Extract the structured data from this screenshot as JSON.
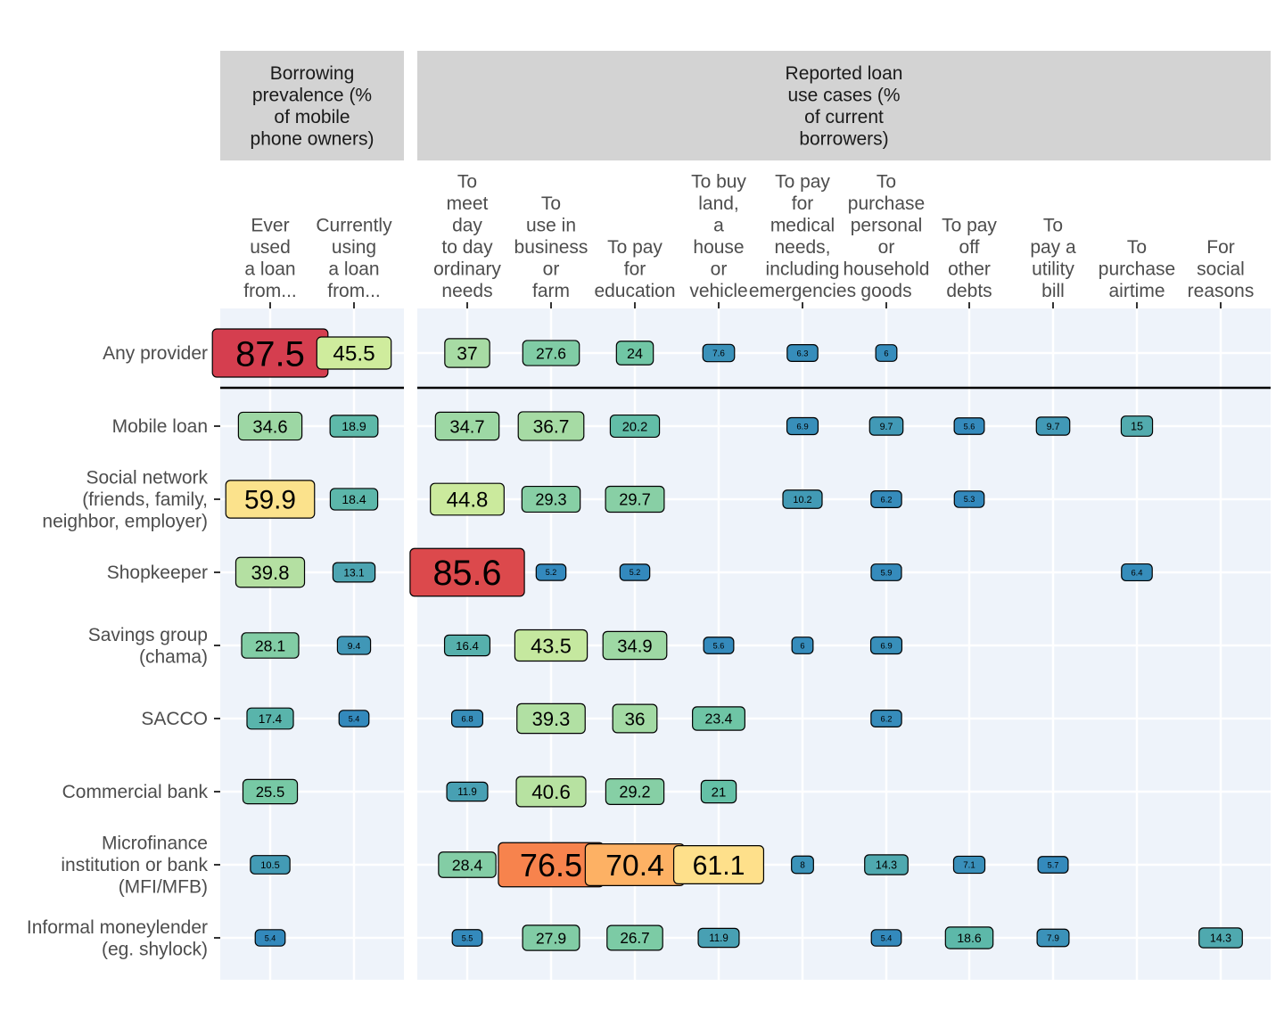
{
  "chart_data": {
    "type": "table",
    "facets": [
      {
        "title": "Borrowing\nprevalence (%\nof mobile\nphone owners)",
        "columns": [
          "Ever\nused\na loan\nfrom...",
          "Currently\nusing\na loan\nfrom..."
        ]
      },
      {
        "title": "Reported loan\nuse cases (%\nof current\nborrowers)",
        "columns": [
          "To\nmeet\nday\nto day\nordinary\nneeds",
          "To\nuse in\nbusiness\nor\nfarm",
          "To pay\nfor\neducation",
          "To buy\nland,\na\nhouse\nor\nvehicle",
          "To pay\nfor\nmedical\nneeds,\nincluding\nemergencies",
          "To\npurchase\npersonal\nor\nhousehold\ngoods",
          "To pay\noff\nother\ndebts",
          "To\npay a\nutility\nbill",
          "To\npurchase\nairtime",
          "For\nsocial\nreasons"
        ]
      }
    ],
    "rows": [
      "Any provider",
      "Mobile loan",
      "Social network\n(friends, family,\nneighbor, employer)",
      "Shopkeeper",
      "Savings group\n(chama)",
      "SACCO",
      "Commercial bank",
      "Microfinance\ninstitution or bank\n(MFI/MFB)",
      "Informal moneylender\n(eg. shylock)"
    ],
    "values": [
      [
        [
          87.5,
          45.5
        ],
        [
          37,
          27.6,
          24,
          7.6,
          6.3,
          6,
          null,
          null,
          null,
          null
        ]
      ],
      [
        [
          34.6,
          18.9
        ],
        [
          34.7,
          36.7,
          20.2,
          null,
          6.9,
          9.7,
          5.6,
          9.7,
          15,
          null
        ]
      ],
      [
        [
          59.9,
          18.4
        ],
        [
          44.8,
          29.3,
          29.7,
          null,
          10.2,
          6.2,
          5.3,
          null,
          null,
          null
        ]
      ],
      [
        [
          39.8,
          13.1
        ],
        [
          85.6,
          5.2,
          5.2,
          null,
          null,
          5.9,
          null,
          null,
          6.4,
          null
        ]
      ],
      [
        [
          28.1,
          9.4
        ],
        [
          16.4,
          43.5,
          34.9,
          5.6,
          6,
          6.9,
          null,
          null,
          null,
          null
        ]
      ],
      [
        [
          17.4,
          5.4
        ],
        [
          6.8,
          39.3,
          36,
          23.4,
          null,
          6.2,
          null,
          null,
          null,
          null
        ]
      ],
      [
        [
          25.5,
          null
        ],
        [
          11.9,
          40.6,
          29.2,
          21,
          null,
          null,
          null,
          null,
          null,
          null
        ]
      ],
      [
        [
          10.5,
          null
        ],
        [
          28.4,
          76.5,
          70.4,
          61.1,
          8,
          14.3,
          7.1,
          5.7,
          null,
          null
        ]
      ],
      [
        [
          5.4,
          null
        ],
        [
          5.5,
          27.9,
          26.7,
          11.9,
          null,
          5.4,
          18.6,
          7.9,
          null,
          14.3
        ]
      ]
    ],
    "separator_after_row": "Any provider",
    "color_scale": "Spectral (reversed): low = blue, high = red",
    "grid": true,
    "legend": "none"
  },
  "colors": {
    "strip_background": "#d3d3d3",
    "panel_background": "#eef3fa",
    "gridline": "#ffffff",
    "separator": "#000000"
  }
}
